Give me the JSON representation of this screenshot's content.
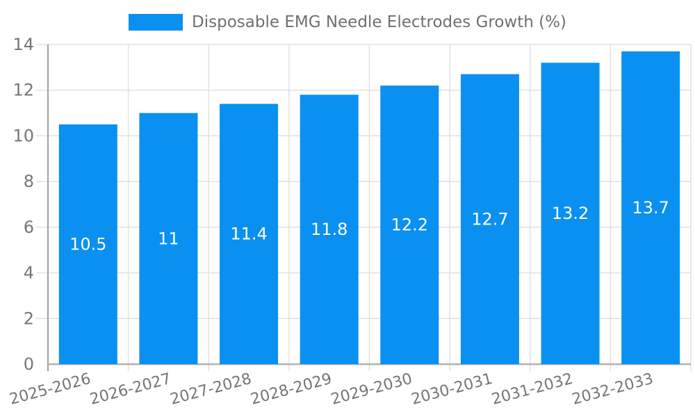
{
  "chart_data": {
    "type": "bar",
    "title": "Disposable EMG Needle Electrodes Growth (%)",
    "legend": [
      "Disposable EMG Needle Electrodes Growth (%)"
    ],
    "legend_position": "top-center",
    "categories": [
      "2025-2026",
      "2026-2027",
      "2027-2028",
      "2028-2029",
      "2029-2030",
      "2030-2031",
      "2031-2032",
      "2032-2033"
    ],
    "series": [
      {
        "name": "Disposable EMG Needle Electrodes Growth (%)",
        "values": [
          10.5,
          11,
          11.4,
          11.8,
          12.2,
          12.7,
          13.2,
          13.7
        ],
        "bar_labels": [
          "10.5",
          "11",
          "11.4",
          "11.8",
          "12.2",
          "12.7",
          "13.2",
          "13.7"
        ]
      }
    ],
    "xlabel": "",
    "ylabel": "",
    "ylim": [
      0,
      14
    ],
    "yticks": [
      0,
      2,
      4,
      6,
      8,
      10,
      12,
      14
    ],
    "x_tick_rotation_deg": -15,
    "grid": true,
    "bar_label_position": "center-inside",
    "colors": {
      "bar": "#0a90f0",
      "grid": "#e0e0e0",
      "y_axis": "#9e9e9e",
      "x_axis": "#b0b0b0",
      "tick_label": "#757575",
      "bar_label": "#ffffff",
      "legend_text": "#6f6f6f",
      "background": "#ffffff"
    }
  }
}
